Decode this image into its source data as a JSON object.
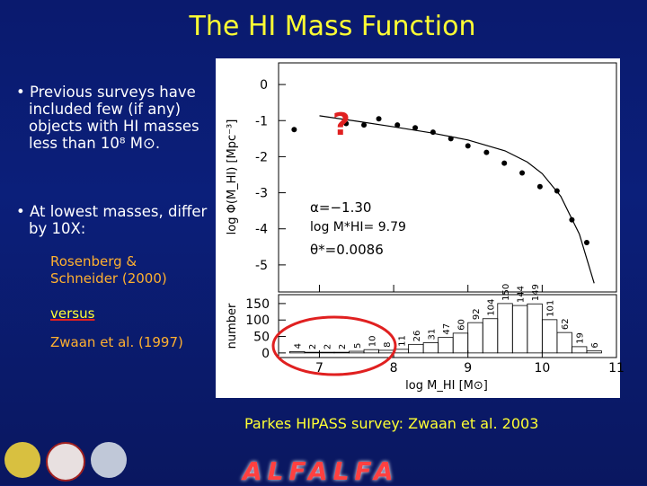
{
  "title": "The HI Mass Function",
  "bullets": [
    "• Previous surveys have included few (if any) objects with HI masses less than 10⁸ M⊙.",
    "• At lowest masses, differ by 10X:"
  ],
  "comparison": [
    "Rosenberg & Schneider (2000)",
    "versus",
    "Zwaan et al. (1997)"
  ],
  "caption": "Parkes HIPASS survey: Zwaan et al. 2003",
  "logo_text": "ALFALFA",
  "chart_data": [
    {
      "type": "scatter",
      "ylabel": "log Φ(M_HI) [Mpc⁻³]",
      "xlim": [
        6.45,
        11
      ],
      "ylim": [
        -5.75,
        0.6
      ],
      "yticks": [
        0,
        -1,
        -2,
        -3,
        -4,
        -5
      ],
      "annotations": [
        "?",
        "α=−1.30",
        "log M*HI= 9.79",
        "θ*=0.0086"
      ],
      "series": [
        {
          "color": "#000000",
          "x": [
            6.66,
            7.36,
            7.6,
            7.8,
            8.05,
            8.29,
            8.53,
            8.77,
            9.0,
            9.25,
            9.49,
            9.73,
            9.97,
            10.2,
            10.4,
            10.6
          ],
          "values": [
            -1.25,
            -1.08,
            -1.12,
            -0.95,
            -1.12,
            -1.2,
            -1.32,
            -1.5,
            -1.7,
            -1.88,
            -2.18,
            -2.45,
            -2.83,
            -2.95,
            -3.75,
            -4.38
          ]
        },
        {
          "color": "#000000",
          "style": "line",
          "x": [
            7,
            7.5,
            8,
            8.5,
            9,
            9.5,
            9.8,
            10,
            10.25,
            10.5,
            10.7
          ],
          "values": [
            -0.867,
            -1.016,
            -1.173,
            -1.338,
            -1.537,
            -1.839,
            -2.15,
            -2.471,
            -3.097,
            -4.144,
            -5.508
          ]
        }
      ]
    },
    {
      "type": "histogram",
      "ylabel": "number",
      "xlabel": "log M_HI [M⊙]",
      "xlim": [
        6.45,
        11
      ],
      "ylim": [
        -14,
        177
      ],
      "yticks": [
        0,
        50,
        100,
        150
      ],
      "xticks": [
        7,
        8,
        9,
        10,
        11
      ],
      "bins": [
        6.6,
        6.8,
        7.0,
        7.2,
        7.4,
        7.6,
        7.8,
        8.0,
        8.2,
        8.4,
        8.6,
        8.8,
        9.0,
        9.2,
        9.4,
        9.6,
        9.8,
        10.0,
        10.2,
        10.4,
        10.6,
        10.8
      ],
      "counts": [
        4,
        2,
        2,
        2,
        5,
        10,
        8,
        11,
        26,
        31,
        47,
        60,
        92,
        104,
        150,
        144,
        149,
        101,
        62,
        19,
        6
      ],
      "color": "#000000"
    }
  ]
}
